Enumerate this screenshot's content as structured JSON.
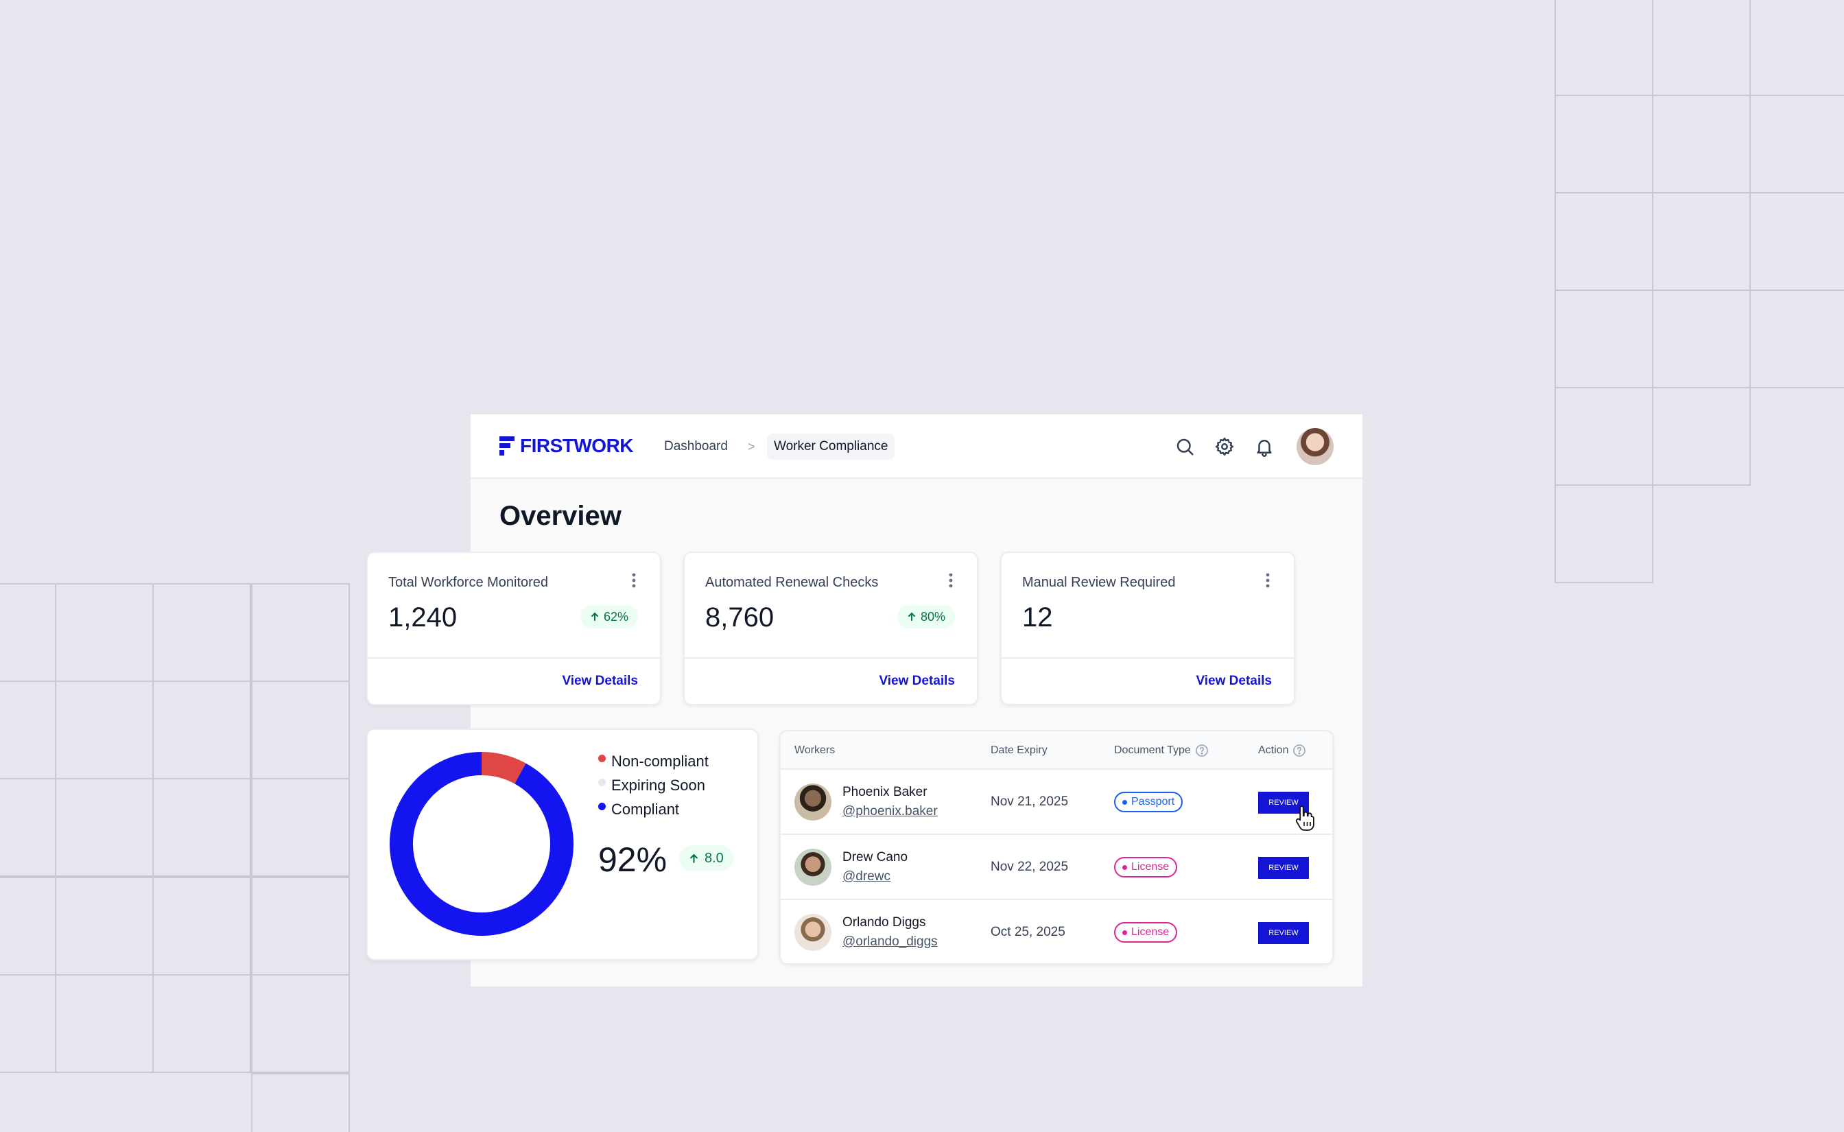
{
  "brand": {
    "name": "FIRSTWORK",
    "color": "#1414d6"
  },
  "breadcrumb": {
    "items": [
      "Dashboard",
      "Worker Compliance"
    ],
    "separator": ">"
  },
  "header_icons": [
    "search-icon",
    "gear-icon",
    "bell-icon"
  ],
  "page": {
    "title": "Overview"
  },
  "kpis": [
    {
      "label": "Total Workforce Monitored",
      "value": "1,240",
      "badge": "62%",
      "link": "View Details"
    },
    {
      "label": "Automated Renewal Checks",
      "value": "8,760",
      "badge": "80%",
      "link": "View Details"
    },
    {
      "label": "Manual Review Required",
      "value": "12",
      "link": "View Details"
    }
  ],
  "compliance": {
    "legend": [
      {
        "label": "Non-compliant",
        "color": "#e04646"
      },
      {
        "label": "Expiring Soon",
        "color": "#e4e7ec"
      },
      {
        "label": "Compliant",
        "color": "#1414f0"
      }
    ],
    "value": "92%",
    "badge": "8.0"
  },
  "chart_data": {
    "type": "pie",
    "labels": [
      "Non-compliant",
      "Expiring Soon",
      "Compliant"
    ],
    "values": [
      8,
      0,
      92
    ],
    "colors": [
      "#e04646",
      "#e4e7ec",
      "#1414f0"
    ]
  },
  "table": {
    "headers": [
      "Workers",
      "Date Expiry",
      "Document Type",
      "Action"
    ],
    "rows": [
      {
        "name": "Phoenix Baker",
        "handle": "@phoenix.baker",
        "date": "Nov 21, 2025",
        "doc": "Passport",
        "action": "REVIEW"
      },
      {
        "name": "Drew Cano",
        "handle": "@drewc",
        "date": "Nov 22, 2025",
        "doc": "License",
        "action": "REVIEW"
      },
      {
        "name": "Orlando Diggs",
        "handle": "@orlando_diggs",
        "date": "Oct 25, 2025",
        "doc": "License",
        "action": "REVIEW"
      }
    ]
  }
}
